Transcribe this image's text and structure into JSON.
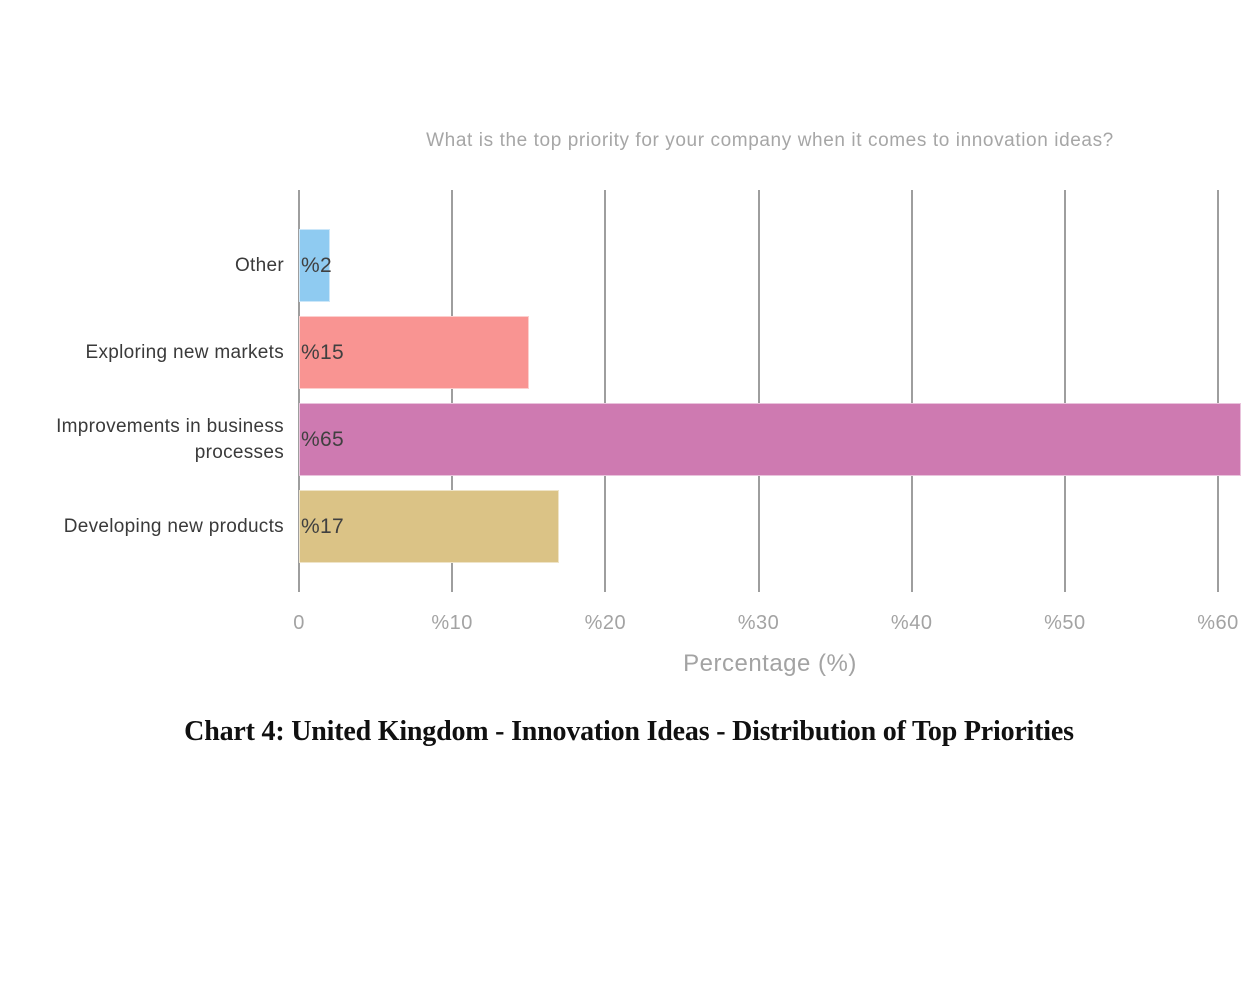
{
  "chart_data": {
    "type": "bar",
    "orientation": "horizontal",
    "title": "What is the top priority for your company when it comes to innovation ideas?",
    "xlabel": "Percentage (%)",
    "categories": [
      "Other",
      "Exploring new markets",
      "Improvements in business processes",
      "Developing new products"
    ],
    "values": [
      2,
      15,
      65,
      17
    ],
    "value_labels": [
      "%2",
      "%15",
      "%65",
      "%17"
    ],
    "bar_colors": [
      "#8fcbf1",
      "#f99492",
      "#ce7ab1",
      "#dbc386"
    ],
    "x_ticks": [
      {
        "value": 0,
        "label": "0"
      },
      {
        "value": 10,
        "label": "%10"
      },
      {
        "value": 20,
        "label": "%20"
      },
      {
        "value": 30,
        "label": "%30"
      },
      {
        "value": 40,
        "label": "%40"
      },
      {
        "value": 50,
        "label": "%50"
      },
      {
        "value": 60,
        "label": "%60"
      }
    ],
    "xlim": [
      0,
      61.5
    ],
    "grid": true,
    "gridline_color": "#9e9e9e",
    "legend": "none"
  },
  "caption": "Chart 4: United Kingdom - Innovation Ideas - Distribution of Top Priorities",
  "colors": {
    "background": "#ffffff",
    "muted_text": "#a6a6a6",
    "category_text": "#3a3a3a",
    "value_text": "#404040",
    "caption_text": "#101010"
  }
}
